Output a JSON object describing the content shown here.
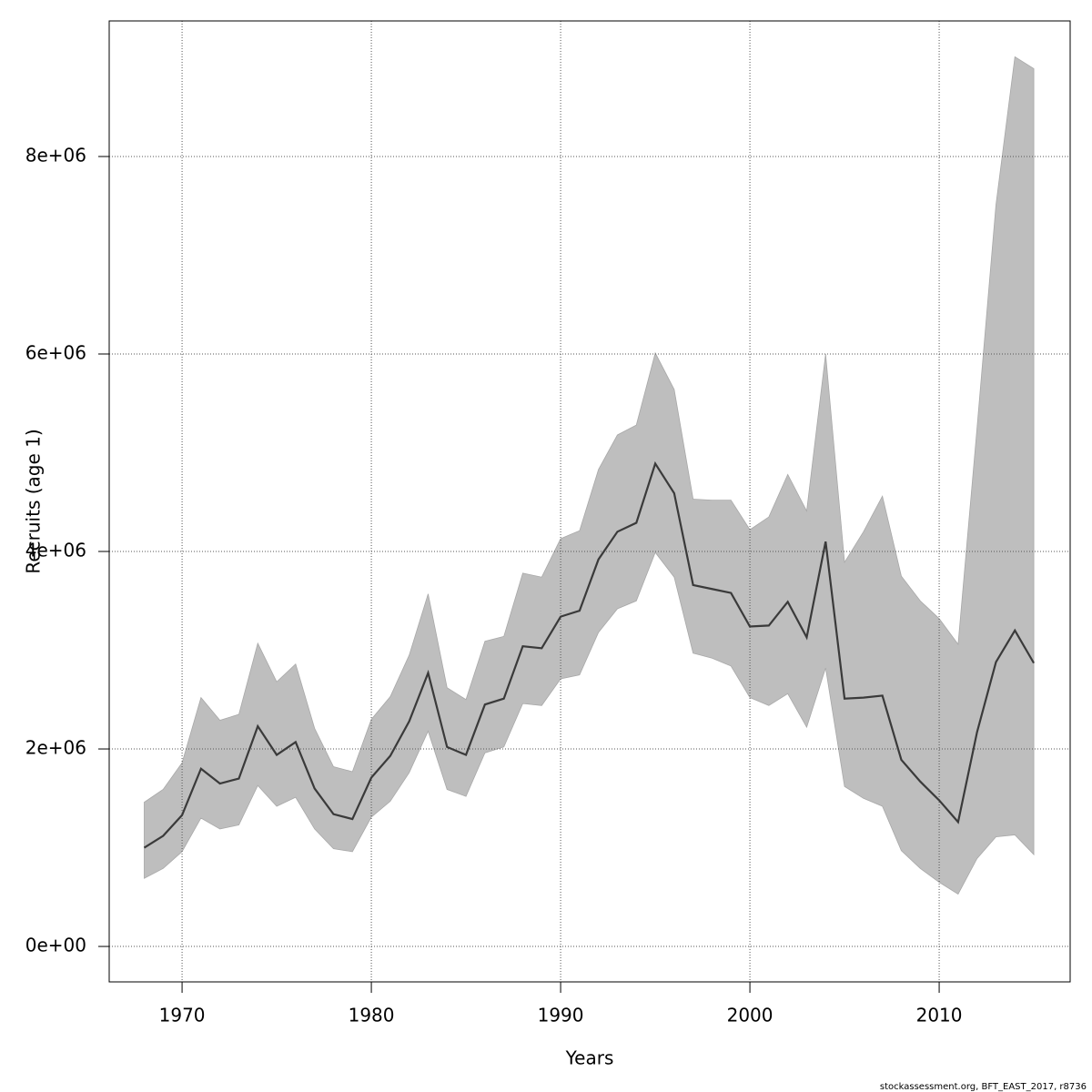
{
  "chart_data": {
    "type": "line",
    "xlabel": "Years",
    "ylabel": "Recruits (age 1)",
    "footnote": "stockassessment.org, BFT_EAST_2017, r8736",
    "x": [
      1968,
      1969,
      1970,
      1971,
      1972,
      1973,
      1974,
      1975,
      1976,
      1977,
      1978,
      1979,
      1980,
      1981,
      1982,
      1983,
      1984,
      1985,
      1986,
      1987,
      1988,
      1989,
      1990,
      1991,
      1992,
      1993,
      1994,
      1995,
      1996,
      1997,
      1998,
      1999,
      2000,
      2001,
      2002,
      2003,
      2004,
      2005,
      2006,
      2007,
      2008,
      2009,
      2010,
      2011,
      2012,
      2013,
      2014,
      2015
    ],
    "values": [
      1000000,
      1120000,
      1330000,
      1800000,
      1650000,
      1700000,
      2230000,
      1940000,
      2070000,
      1600000,
      1340000,
      1290000,
      1710000,
      1930000,
      2280000,
      2770000,
      2020000,
      1940000,
      2450000,
      2510000,
      3040000,
      3020000,
      3340000,
      3400000,
      3920000,
      4200000,
      4290000,
      4890000,
      4590000,
      3660000,
      3620000,
      3580000,
      3240000,
      3250000,
      3490000,
      3130000,
      4100000,
      2510000,
      2520000,
      2540000,
      1890000,
      1670000,
      1480000,
      1260000,
      2170000,
      2880000,
      3200000,
      2870000
    ],
    "upper": [
      1460000,
      1590000,
      1860000,
      2520000,
      2290000,
      2350000,
      3070000,
      2680000,
      2860000,
      2210000,
      1820000,
      1770000,
      2300000,
      2530000,
      2950000,
      3570000,
      2620000,
      2500000,
      3090000,
      3140000,
      3780000,
      3740000,
      4130000,
      4210000,
      4830000,
      5180000,
      5280000,
      6010000,
      5640000,
      4530000,
      4520000,
      4520000,
      4220000,
      4350000,
      4780000,
      4410000,
      6000000,
      3890000,
      4200000,
      4560000,
      3750000,
      3500000,
      3320000,
      3060000,
      5250000,
      7510000,
      9010000,
      8890000
    ],
    "lower": [
      690000,
      790000,
      960000,
      1300000,
      1190000,
      1230000,
      1630000,
      1420000,
      1510000,
      1190000,
      990000,
      960000,
      1310000,
      1470000,
      1760000,
      2180000,
      1590000,
      1520000,
      1960000,
      2020000,
      2460000,
      2440000,
      2710000,
      2750000,
      3180000,
      3420000,
      3500000,
      3990000,
      3740000,
      2970000,
      2920000,
      2840000,
      2520000,
      2440000,
      2560000,
      2220000,
      2820000,
      1620000,
      1500000,
      1420000,
      970000,
      790000,
      650000,
      530000,
      890000,
      1110000,
      1130000,
      930000
    ],
    "line_color": "#3a3a3a",
    "band_color": "#bebebe",
    "xlim": [
      1966.15,
      2016.92
    ],
    "ylim": [
      -359000,
      9373000
    ],
    "xticks": [
      1970,
      1980,
      1990,
      2000,
      2010
    ],
    "yticks": [
      {
        "value": 0,
        "label": "0e+00"
      },
      {
        "value": 2000000,
        "label": "2e+06"
      },
      {
        "value": 4000000,
        "label": "4e+06"
      },
      {
        "value": 6000000,
        "label": "6e+06"
      },
      {
        "value": 8000000,
        "label": "8e+06"
      }
    ],
    "grid": true
  }
}
